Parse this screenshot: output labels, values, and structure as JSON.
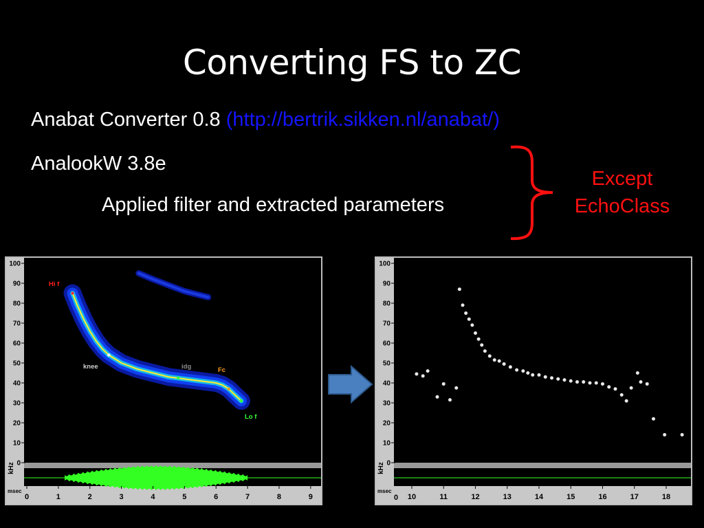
{
  "slide": {
    "title": "Converting FS to ZC",
    "line1_text": "Anabat Converter 0.8",
    "line1_link": "(http://bertrik.sikken.nl/anabat/)",
    "line2_text": "AnalookW 3.8e",
    "line3_text": "Applied filter and extracted parameters",
    "except_line1": "Except",
    "except_line2": "EchoClass"
  },
  "colors": {
    "link": "#1515ff",
    "except": "#ff1010",
    "trace": "#ffee30",
    "envelope": "#33ff22",
    "arrow": "#4a7fc0"
  },
  "left_panel": {
    "y_ticks": [
      "100",
      "90",
      "80",
      "70",
      "60",
      "50",
      "40",
      "30",
      "20",
      "10",
      "0"
    ],
    "y_unit": "kHz",
    "x_unit": "msec",
    "x_ticks": [
      "0",
      "1",
      "2",
      "3",
      "4",
      "5",
      "6",
      "7",
      "8",
      "9"
    ],
    "labels": {
      "hi_f": "Hi f",
      "knee": "knee",
      "idg": "idg",
      "fc": "Fc",
      "lo_f": "Lo f"
    }
  },
  "right_panel": {
    "y_ticks": [
      "100",
      "90",
      "80",
      "70",
      "60",
      "50",
      "40",
      "30",
      "20",
      "10",
      "0"
    ],
    "y_unit": "kHz",
    "x_unit": "msec",
    "x_origin": "0",
    "x_ticks": [
      "10",
      "11",
      "12",
      "13",
      "14",
      "15",
      "16",
      "17",
      "18"
    ]
  },
  "chart_data": [
    {
      "type": "line",
      "xlabel": "msec",
      "ylabel": "kHz",
      "xlim": [
        0,
        9.2
      ],
      "ylim": [
        0,
        100
      ],
      "series": [
        {
          "x": [
            1.45,
            1.6,
            1.8,
            2.0,
            2.2,
            2.4,
            2.6,
            3.0,
            3.5,
            4.0,
            4.5,
            5.0,
            5.5,
            6.0,
            6.2,
            6.4,
            6.6,
            6.8
          ],
          "y": [
            85,
            79,
            72,
            66,
            61,
            57,
            54,
            50,
            47,
            45,
            43,
            42,
            41,
            40,
            39,
            37,
            34,
            31
          ]
        },
        {
          "x": [
            3.55,
            4.0,
            4.5,
            5.0,
            5.5,
            5.75
          ],
          "y": [
            95,
            92,
            89,
            86,
            84,
            83
          ]
        }
      ]
    },
    {
      "type": "scatter",
      "xlabel": "msec",
      "ylabel": "kHz",
      "xlim": [
        9.7,
        18.7
      ],
      "ylim": [
        0,
        100
      ],
      "series": [
        {
          "x": [
            10.15,
            10.35,
            10.5,
            10.8,
            11.0,
            11.2,
            11.4,
            11.5,
            11.6,
            11.7,
            11.8,
            11.9,
            12.0,
            12.1,
            12.2,
            12.3,
            12.45,
            12.6,
            12.75,
            12.9,
            13.1,
            13.3,
            13.5,
            13.65,
            13.8,
            14.0,
            14.2,
            14.4,
            14.6,
            14.8,
            15.0,
            15.2,
            15.4,
            15.6,
            15.8,
            16.0,
            16.2,
            16.4,
            16.6,
            16.75,
            16.9,
            17.1,
            17.2,
            17.4,
            17.6,
            17.95,
            18.5
          ],
          "y": [
            44.5,
            43.5,
            46,
            33,
            39.5,
            31.5,
            37.5,
            87,
            79,
            75,
            72,
            69,
            65,
            62,
            59,
            56,
            53.5,
            51.5,
            51,
            49.5,
            48,
            46.5,
            46,
            45,
            44,
            44,
            43,
            42.5,
            42,
            41.5,
            41,
            40.5,
            40.5,
            40,
            40,
            39.5,
            38,
            37,
            34,
            31,
            37.5,
            45,
            40.5,
            39.5,
            22,
            14,
            14
          ]
        }
      ]
    }
  ]
}
